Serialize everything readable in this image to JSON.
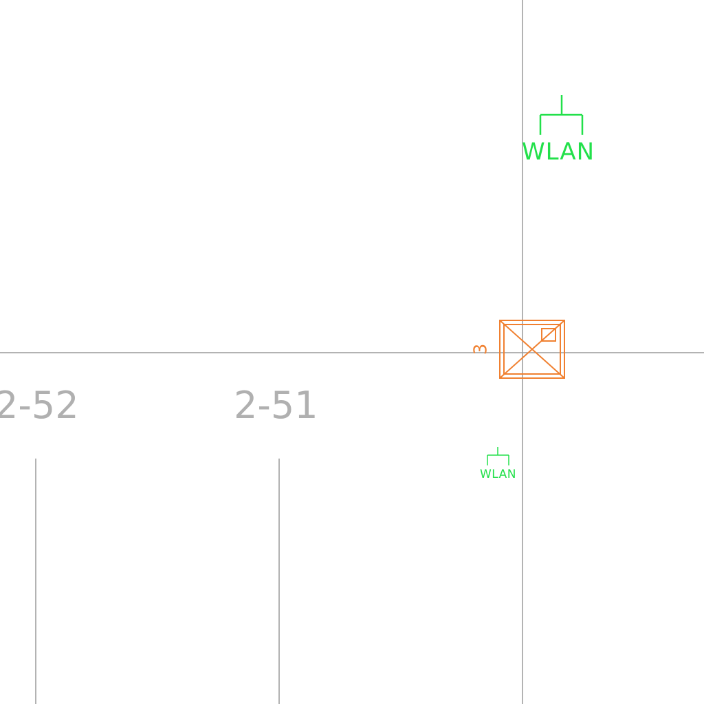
{
  "rooms": [
    {
      "label": "2-52"
    },
    {
      "label": "2-51"
    }
  ],
  "wlan_outlets": [
    {
      "label": "WLAN"
    },
    {
      "label": "WLAN"
    }
  ],
  "fixture": {
    "number": "3"
  },
  "colors": {
    "background": "#ffffff",
    "grid_line": "#9a9a9a",
    "room_label": "#b0b0b0",
    "wlan": "#22e04a",
    "fixture": "#f08030"
  }
}
